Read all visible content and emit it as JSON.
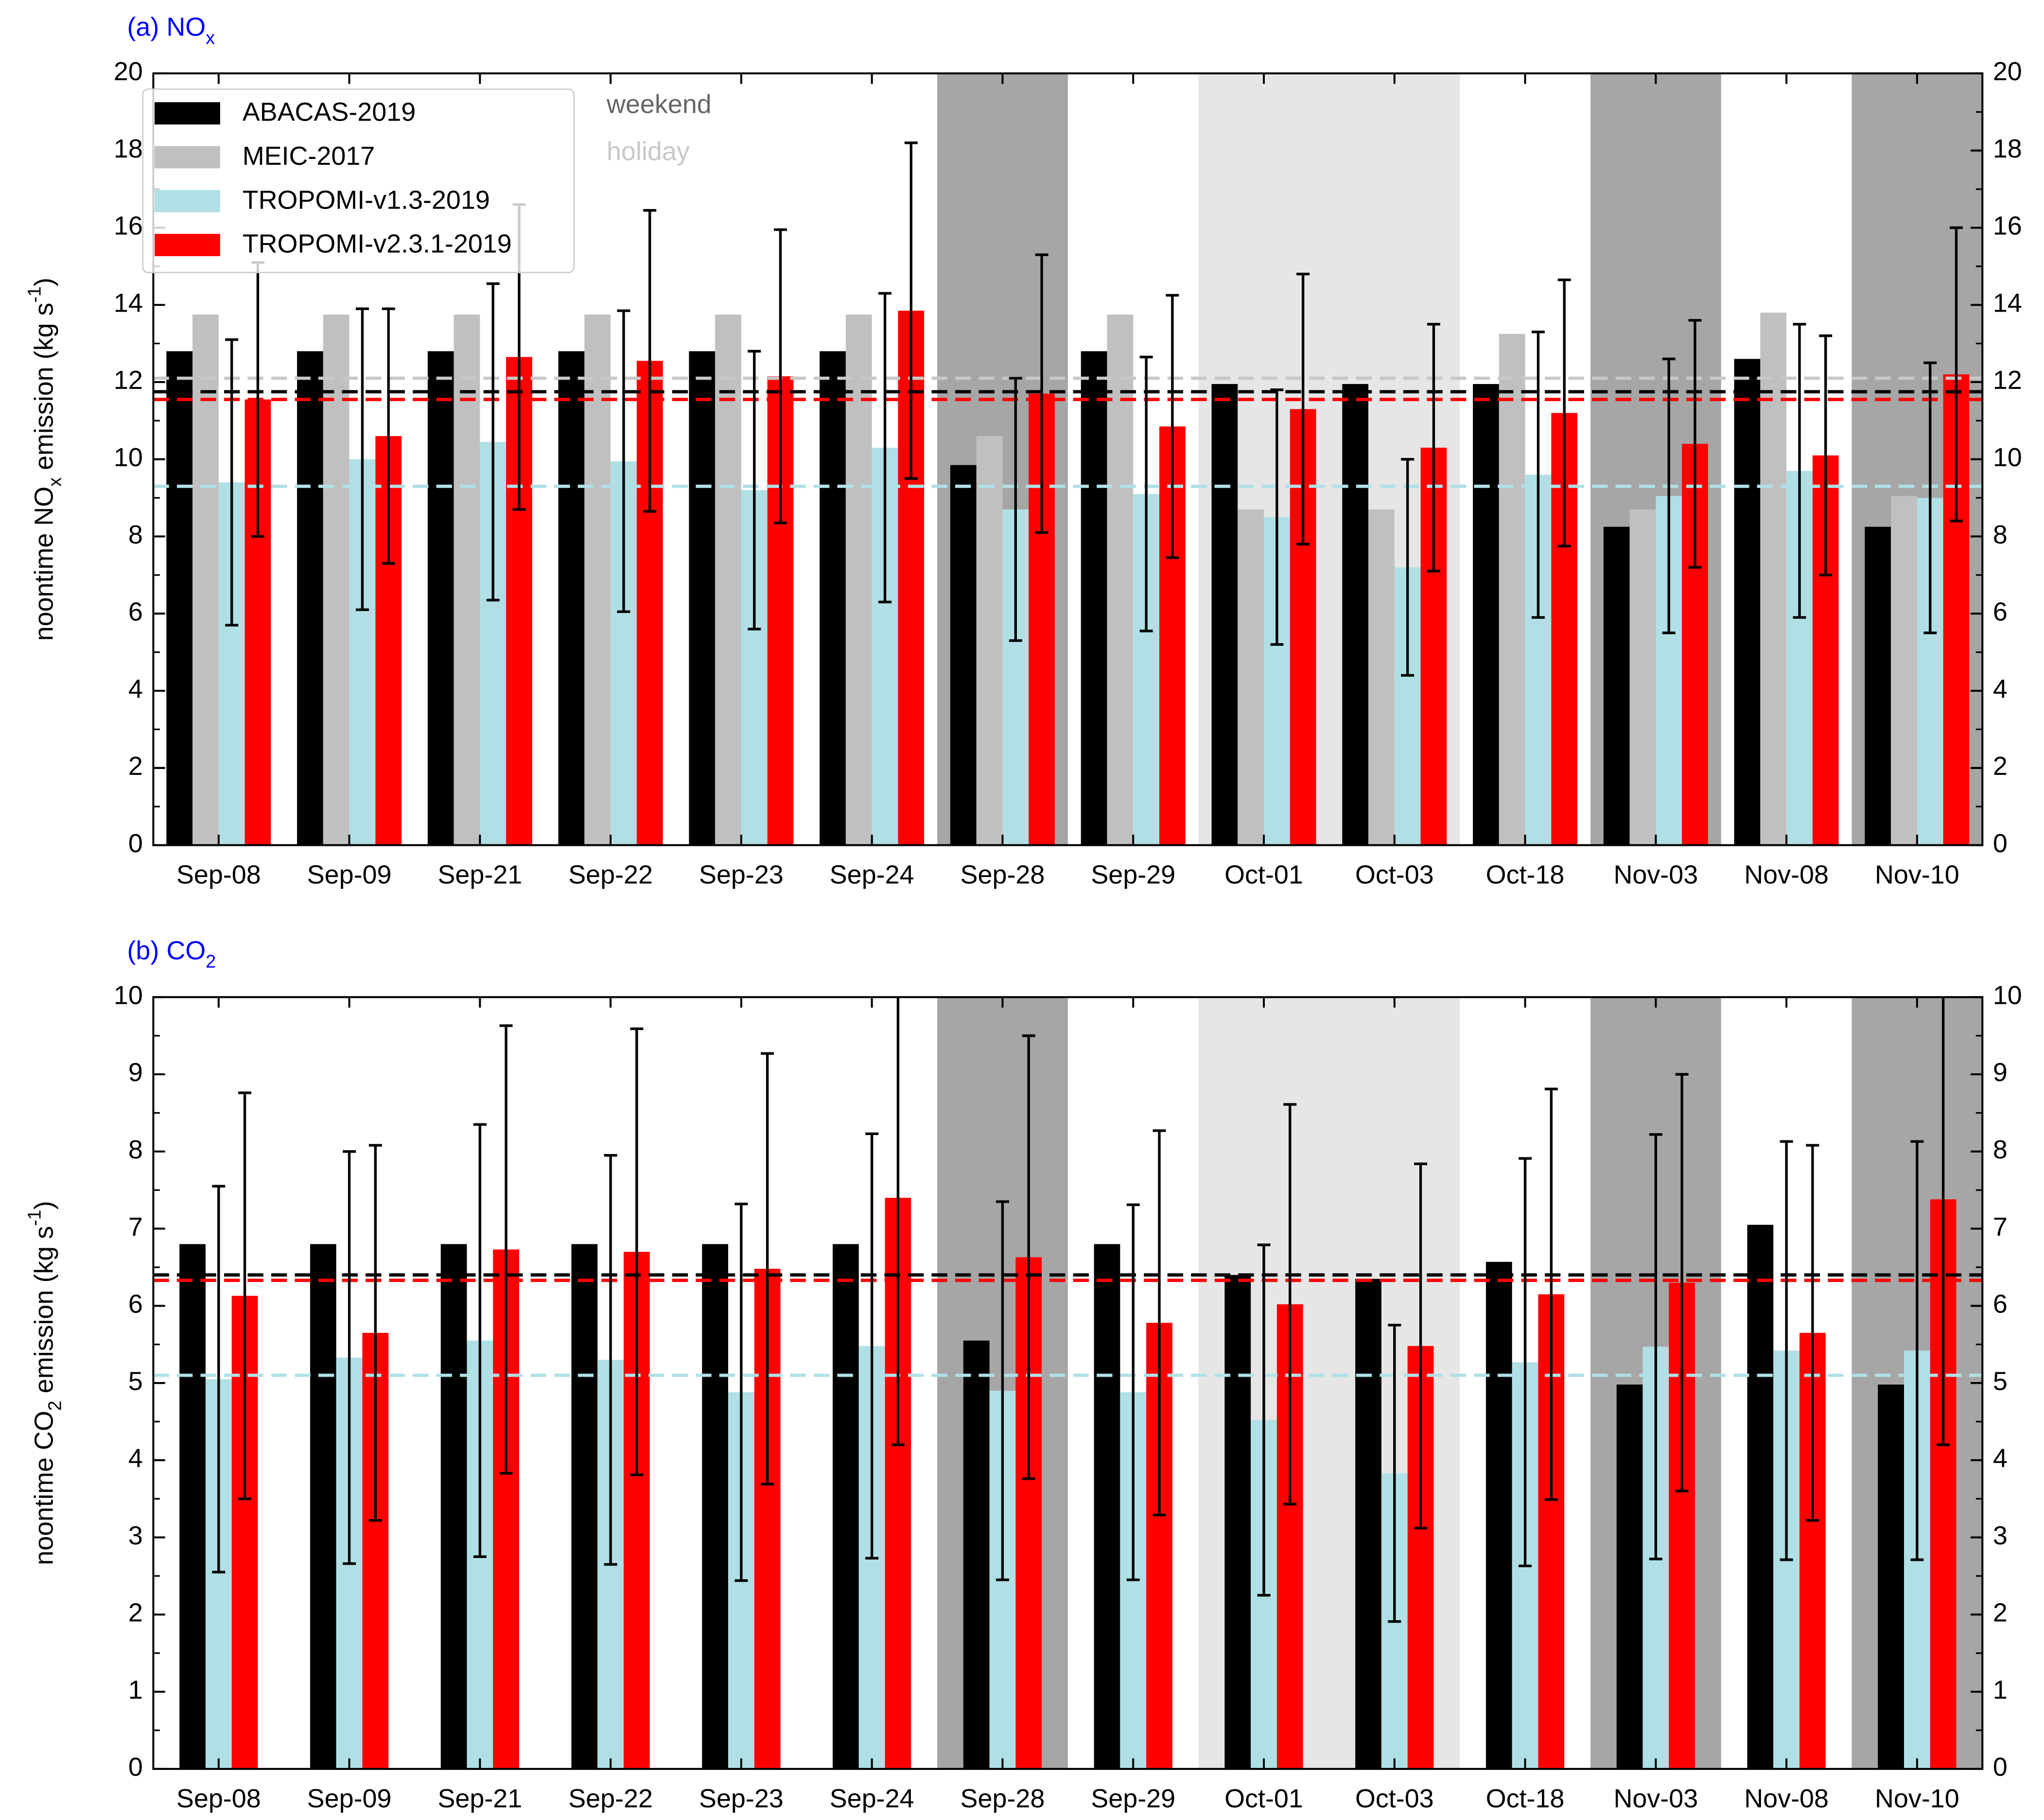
{
  "chart_data": [
    {
      "type": "bar",
      "title": [
        {
          "text": "(a) NO"
        },
        {
          "text": "x",
          "script": "sub"
        }
      ],
      "ylabel": [
        {
          "text": "noontime NO"
        },
        {
          "text": "x",
          "script": "sub"
        },
        {
          "text": " emission (kg s"
        },
        {
          "text": "-1",
          "script": "super"
        },
        {
          "text": ")"
        }
      ],
      "categories": [
        "Sep-08",
        "Sep-09",
        "Sep-21",
        "Sep-22",
        "Sep-23",
        "Sep-24",
        "Sep-28",
        "Sep-29",
        "Oct-01",
        "Oct-03",
        "Oct-18",
        "Nov-03",
        "Nov-08",
        "Nov-10"
      ],
      "ylim": [
        0,
        20
      ],
      "yticks": [
        0,
        2,
        4,
        6,
        8,
        10,
        12,
        14,
        16,
        18,
        20
      ],
      "legend": "upper left",
      "shading": [
        {
          "label": "weekend",
          "label_color": "#666666",
          "fill": "#a6a6a6",
          "categories": [
            "Sep-28",
            "Nov-03",
            "Nov-10"
          ]
        },
        {
          "label": "holiday",
          "label_color": "#c8c8c8",
          "fill": "#e6e6e6",
          "categories": [
            "Oct-01",
            "Oct-03"
          ]
        }
      ],
      "series": [
        {
          "name": "ABACAS-2019",
          "color": "#000000",
          "mean": 11.75,
          "values": [
            12.8,
            12.8,
            12.8,
            12.8,
            12.8,
            12.8,
            9.85,
            12.8,
            11.95,
            11.95,
            11.95,
            8.25,
            12.6,
            8.25
          ]
        },
        {
          "name": "MEIC-2017",
          "color": "#c0c0c0",
          "mean": 12.1,
          "values": [
            13.75,
            13.75,
            13.75,
            13.75,
            13.75,
            13.75,
            10.6,
            13.75,
            8.7,
            8.7,
            13.25,
            8.7,
            13.8,
            9.05
          ]
        },
        {
          "name": "TROPOMI-v1.3-2019",
          "color": "#b0e0e6",
          "mean": 9.3,
          "values": [
            9.4,
            10.0,
            10.45,
            9.95,
            9.2,
            10.3,
            8.7,
            9.1,
            8.5,
            7.2,
            9.6,
            9.05,
            9.7,
            9.0
          ],
          "errors": [
            3.7,
            3.9,
            4.1,
            3.9,
            3.6,
            4.0,
            3.4,
            3.55,
            3.3,
            2.8,
            3.7,
            3.55,
            3.8,
            3.5
          ]
        },
        {
          "name": "TROPOMI-v2.3.1-2019",
          "color": "#ff0000",
          "mean": 11.55,
          "values": [
            11.55,
            10.6,
            12.65,
            12.55,
            12.15,
            13.85,
            11.7,
            10.85,
            11.3,
            10.3,
            11.2,
            10.4,
            10.1,
            12.2
          ],
          "errors": [
            3.55,
            3.3,
            3.95,
            3.9,
            3.8,
            4.35,
            3.6,
            3.4,
            3.5,
            3.2,
            3.45,
            3.2,
            3.1,
            3.8
          ]
        }
      ]
    },
    {
      "type": "bar",
      "title": [
        {
          "text": "(b) CO"
        },
        {
          "text": "2",
          "script": "sub"
        }
      ],
      "ylabel": [
        {
          "text": "noontime CO"
        },
        {
          "text": "2",
          "script": "sub"
        },
        {
          "text": " emission (kg s"
        },
        {
          "text": "-1",
          "script": "super"
        },
        {
          "text": ")"
        }
      ],
      "categories": [
        "Sep-08",
        "Sep-09",
        "Sep-21",
        "Sep-22",
        "Sep-23",
        "Sep-24",
        "Sep-28",
        "Sep-29",
        "Oct-01",
        "Oct-03",
        "Oct-18",
        "Nov-03",
        "Nov-08",
        "Nov-10"
      ],
      "ylim": [
        0,
        10
      ],
      "yticks": [
        0,
        1,
        2,
        3,
        4,
        5,
        6,
        7,
        8,
        9,
        10
      ],
      "legend": false,
      "shading": [
        {
          "fill": "#a6a6a6",
          "categories": [
            "Sep-28",
            "Nov-03",
            "Nov-10"
          ]
        },
        {
          "fill": "#e6e6e6",
          "categories": [
            "Oct-01",
            "Oct-03"
          ]
        }
      ],
      "series": [
        {
          "name": "ABACAS-2019",
          "color": "#000000",
          "mean": 6.4,
          "values": [
            6.8,
            6.8,
            6.8,
            6.8,
            6.8,
            6.8,
            5.55,
            6.8,
            6.4,
            6.35,
            6.57,
            4.98,
            7.05,
            4.98
          ]
        },
        {
          "name": "TROPOMI-v1.3-2019",
          "color": "#b0e0e6",
          "mean": 5.1,
          "values": [
            5.05,
            5.33,
            5.55,
            5.3,
            4.88,
            5.48,
            4.9,
            4.88,
            4.52,
            3.83,
            5.27,
            5.47,
            5.42,
            5.42
          ],
          "errors": [
            2.5,
            2.67,
            2.8,
            2.65,
            2.44,
            2.75,
            2.45,
            2.43,
            2.27,
            1.92,
            2.64,
            2.75,
            2.71,
            2.71
          ]
        },
        {
          "name": "TROPOMI-v2.3.1-2019",
          "color": "#ff0000",
          "mean": 6.33,
          "values": [
            6.13,
            5.65,
            6.73,
            6.7,
            6.48,
            7.4,
            6.63,
            5.78,
            6.02,
            5.48,
            6.15,
            6.3,
            5.65,
            7.38
          ],
          "errors": [
            2.63,
            2.43,
            2.9,
            2.89,
            2.79,
            3.2,
            2.87,
            2.49,
            2.59,
            2.36,
            2.66,
            2.7,
            2.43,
            3.18
          ]
        }
      ]
    }
  ]
}
